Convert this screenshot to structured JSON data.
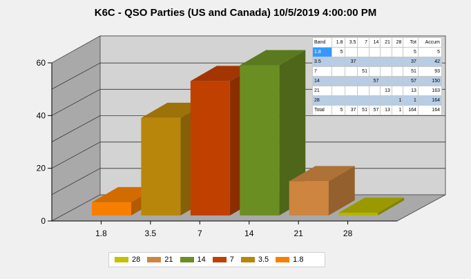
{
  "chart_data": {
    "type": "bar",
    "title": "K6C - QSO Parties (US and Canada) 10/5/2019 4:00:00 PM",
    "categories": [
      "1.8",
      "3.5",
      "7",
      "14",
      "21",
      "28"
    ],
    "values": [
      5,
      37,
      51,
      57,
      13,
      1
    ],
    "colors": [
      "#f77f00",
      "#b8860b",
      "#c04000",
      "#6b8e23",
      "#cd853f",
      "#b5b500"
    ],
    "ylim": [
      0,
      60
    ],
    "yticks": [
      "0",
      "20",
      "40",
      "60"
    ],
    "grid": true,
    "three_d": true,
    "legend": {
      "placement": "bottom",
      "items": [
        {
          "label": "28",
          "color": "#c2c200"
        },
        {
          "label": "21",
          "color": "#cd853f"
        },
        {
          "label": "14",
          "color": "#6b8e23"
        },
        {
          "label": "7",
          "color": "#c04000"
        },
        {
          "label": "3.5",
          "color": "#b8860b"
        },
        {
          "label": "1.8",
          "color": "#f77f00"
        }
      ]
    },
    "table": {
      "header": [
        "Band",
        "1.8",
        "3.5",
        "7",
        "14",
        "21",
        "28",
        "Tot",
        "Accum"
      ],
      "rows": [
        [
          "1.8",
          "5",
          "",
          "",
          "",
          "",
          "",
          "5",
          "5"
        ],
        [
          "3.5",
          "",
          "37",
          "",
          "",
          "",
          "",
          "37",
          "42"
        ],
        [
          "7",
          "",
          "",
          "51",
          "",
          "",
          "",
          "51",
          "93"
        ],
        [
          "14",
          "",
          "",
          "",
          "57",
          "",
          "",
          "57",
          "150"
        ],
        [
          "21",
          "",
          "",
          "",
          "",
          "13",
          "",
          "13",
          "163"
        ],
        [
          "28",
          "",
          "",
          "",
          "",
          "",
          "1",
          "1",
          "164"
        ],
        [
          "Total",
          "5",
          "37",
          "51",
          "57",
          "13",
          "1",
          "164",
          "164"
        ]
      ]
    }
  }
}
